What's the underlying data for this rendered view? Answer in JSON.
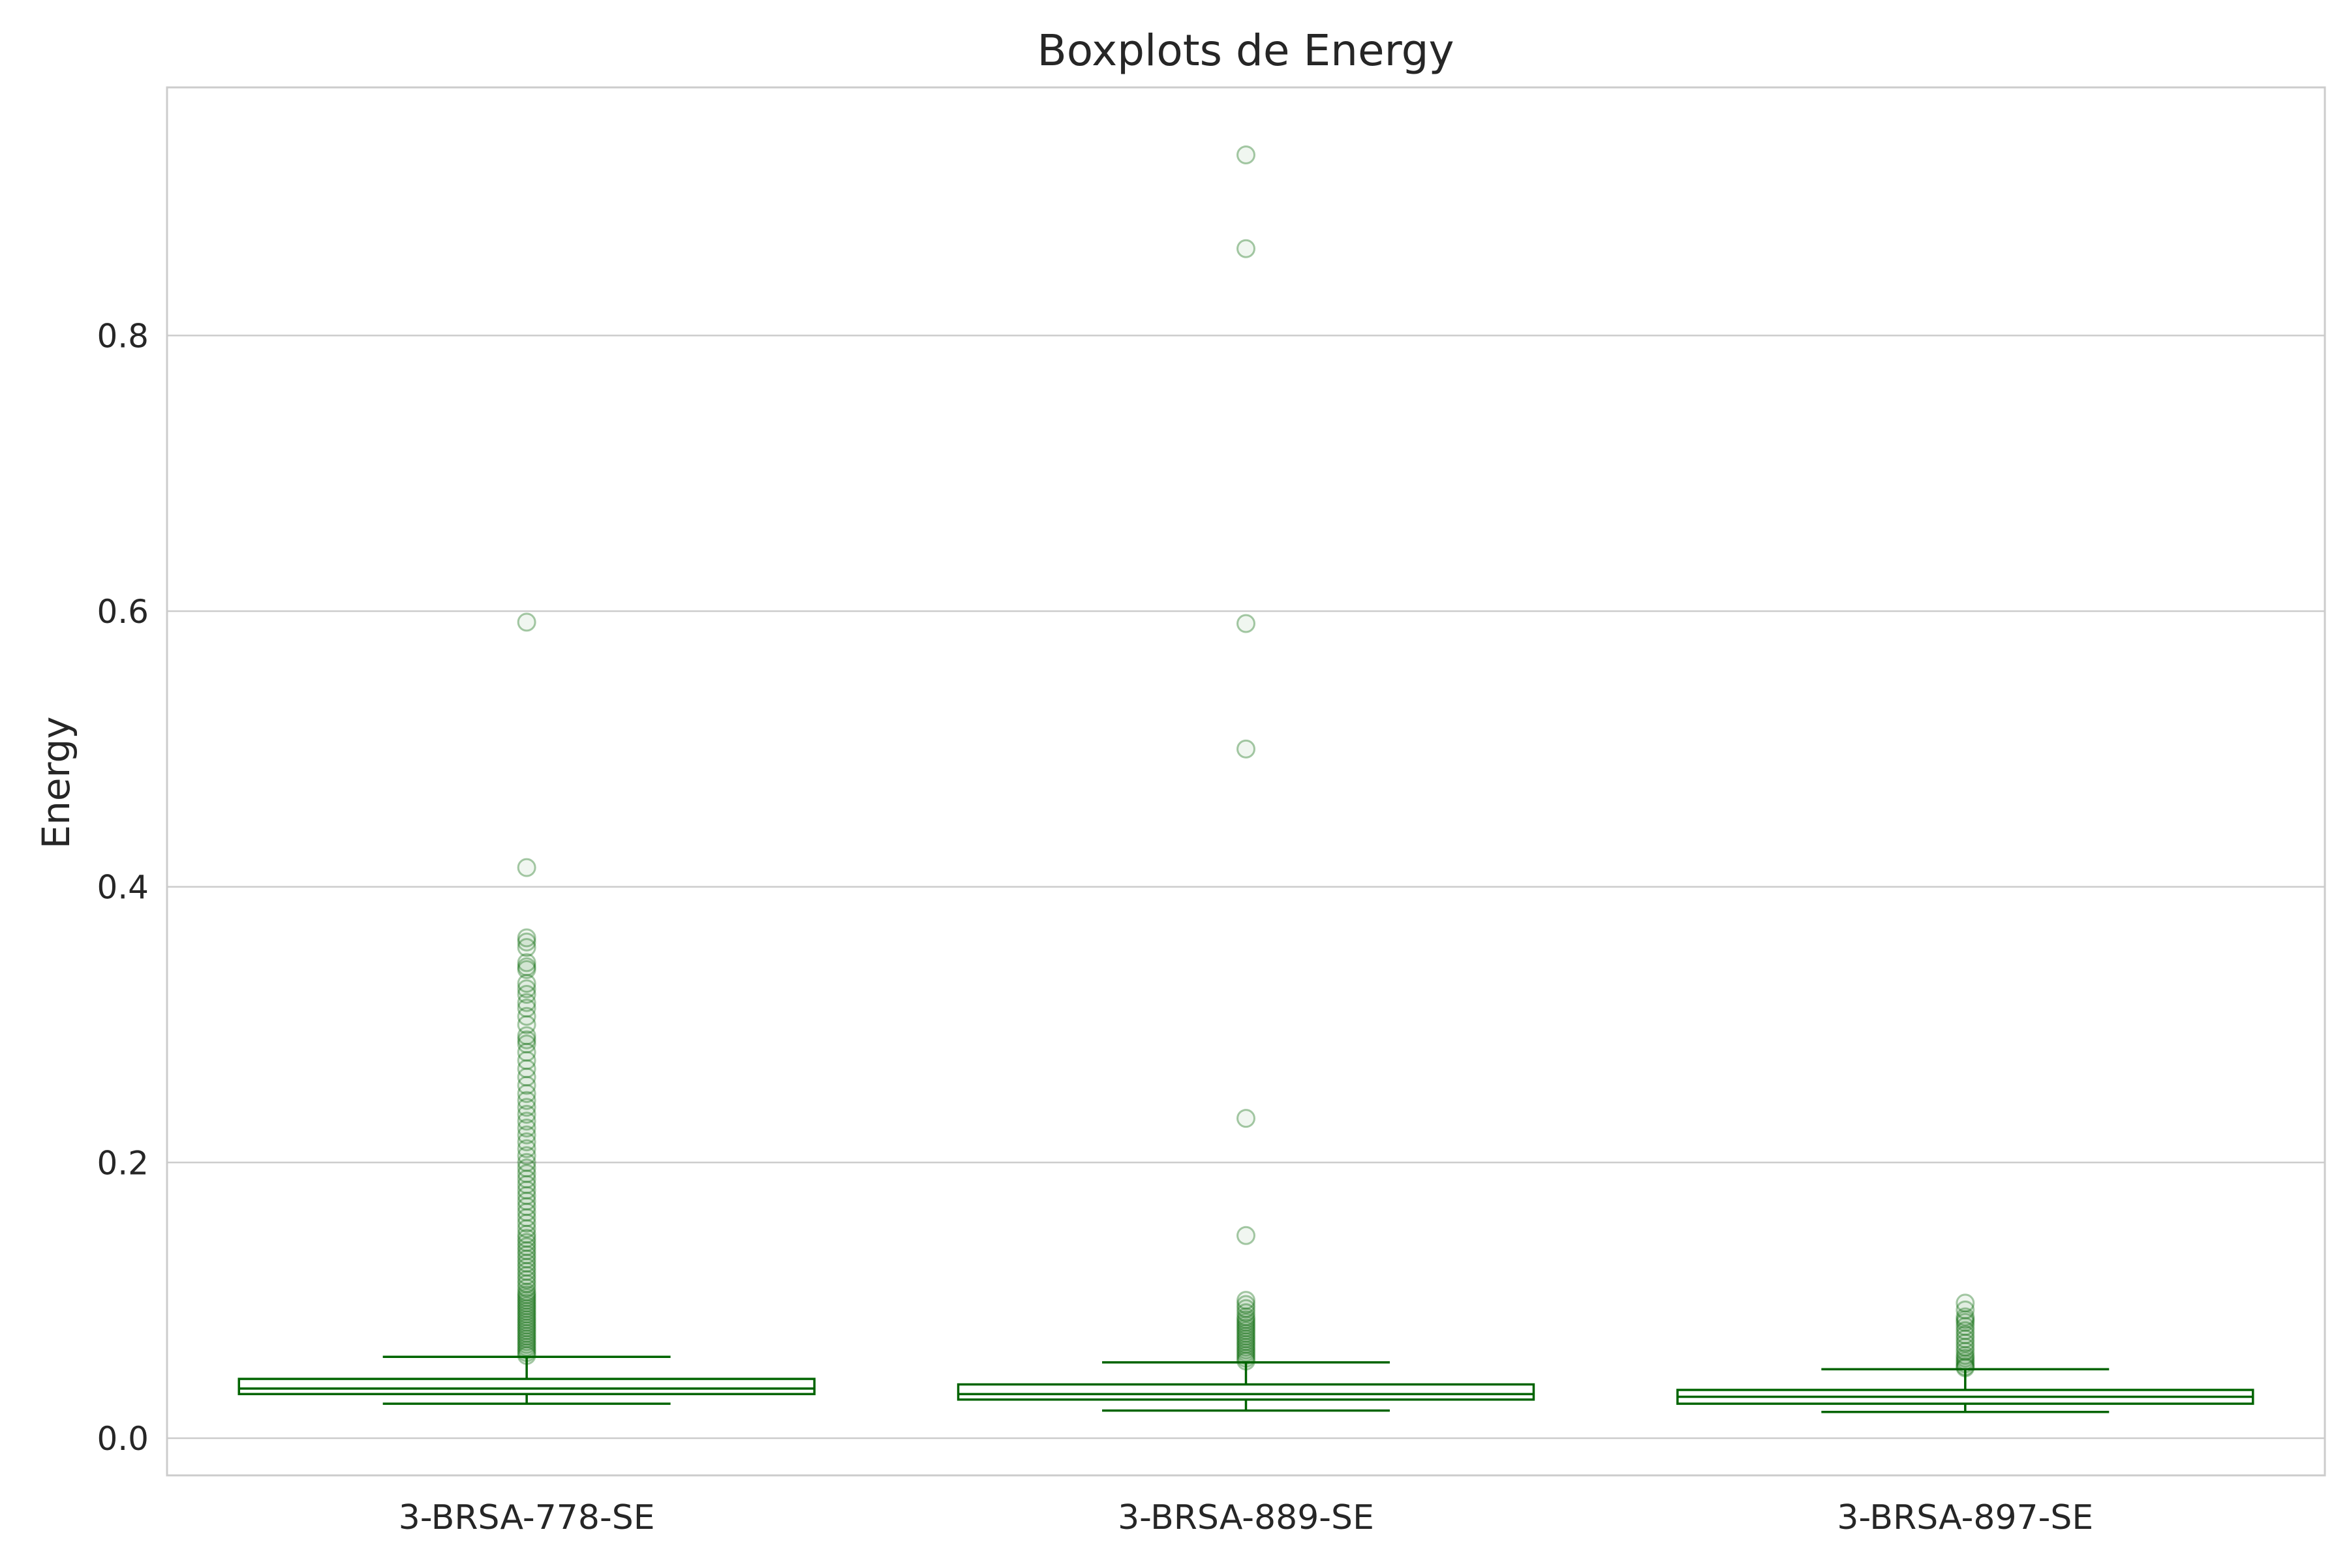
{
  "chart_data": {
    "type": "boxplot",
    "title": "Boxplots de Energy",
    "xlabel": "",
    "ylabel": "Energy",
    "ylim": [
      -0.027,
      0.98
    ],
    "yticks": [
      0.0,
      0.2,
      0.4,
      0.6,
      0.8
    ],
    "ytick_labels": [
      "0.0",
      "0.2",
      "0.4",
      "0.6",
      "0.8"
    ],
    "grid": "horizontal",
    "colors": {
      "box": "#006400",
      "outlier": "#006400",
      "grid": "#cccccc",
      "axes_edge": "#cccccc",
      "text": "#262626"
    },
    "categories": [
      "3-BRSA-778-SE",
      "3-BRSA-889-SE",
      "3-BRSA-897-SE"
    ],
    "boxes": [
      {
        "label": "3-BRSA-778-SE",
        "whisker_low": 0.025,
        "q1": 0.032,
        "median": 0.036,
        "q3": 0.043,
        "whisker_high": 0.059,
        "outliers": [
          0.592,
          0.414,
          0.363,
          0.36,
          0.356,
          0.345,
          0.342,
          0.34,
          0.33,
          0.326,
          0.322,
          0.316,
          0.312,
          0.306,
          0.3,
          0.292,
          0.289,
          0.286,
          0.28,
          0.274,
          0.268,
          0.262,
          0.256,
          0.25,
          0.245,
          0.24,
          0.235,
          0.23,
          0.225,
          0.22,
          0.215,
          0.21,
          0.205,
          0.2,
          0.196,
          0.192,
          0.188,
          0.184,
          0.18,
          0.176,
          0.172,
          0.168,
          0.164,
          0.16,
          0.156,
          0.152,
          0.148,
          0.145,
          0.142,
          0.139,
          0.136,
          0.133,
          0.13,
          0.127,
          0.124,
          0.121,
          0.118,
          0.115,
          0.112,
          0.109,
          0.106,
          0.104,
          0.102,
          0.1,
          0.098,
          0.096,
          0.094,
          0.092,
          0.09,
          0.088,
          0.086,
          0.084,
          0.082,
          0.08,
          0.078,
          0.076,
          0.074,
          0.072,
          0.07,
          0.068,
          0.066,
          0.064,
          0.062,
          0.06
        ]
      },
      {
        "label": "3-BRSA-889-SE",
        "whisker_low": 0.02,
        "q1": 0.028,
        "median": 0.032,
        "q3": 0.039,
        "whisker_high": 0.055,
        "outliers": [
          0.931,
          0.863,
          0.591,
          0.5,
          0.232,
          0.147,
          0.1,
          0.097,
          0.094,
          0.091,
          0.088,
          0.086,
          0.084,
          0.082,
          0.08,
          0.078,
          0.076,
          0.074,
          0.072,
          0.07,
          0.068,
          0.066,
          0.064,
          0.062,
          0.06,
          0.058,
          0.056
        ]
      },
      {
        "label": "3-BRSA-897-SE",
        "whisker_low": 0.019,
        "q1": 0.025,
        "median": 0.03,
        "q3": 0.035,
        "whisker_high": 0.05,
        "outliers": [
          0.098,
          0.093,
          0.088,
          0.086,
          0.084,
          0.081,
          0.078,
          0.075,
          0.072,
          0.069,
          0.066,
          0.063,
          0.06,
          0.058,
          0.056,
          0.054,
          0.052,
          0.051
        ]
      }
    ]
  }
}
